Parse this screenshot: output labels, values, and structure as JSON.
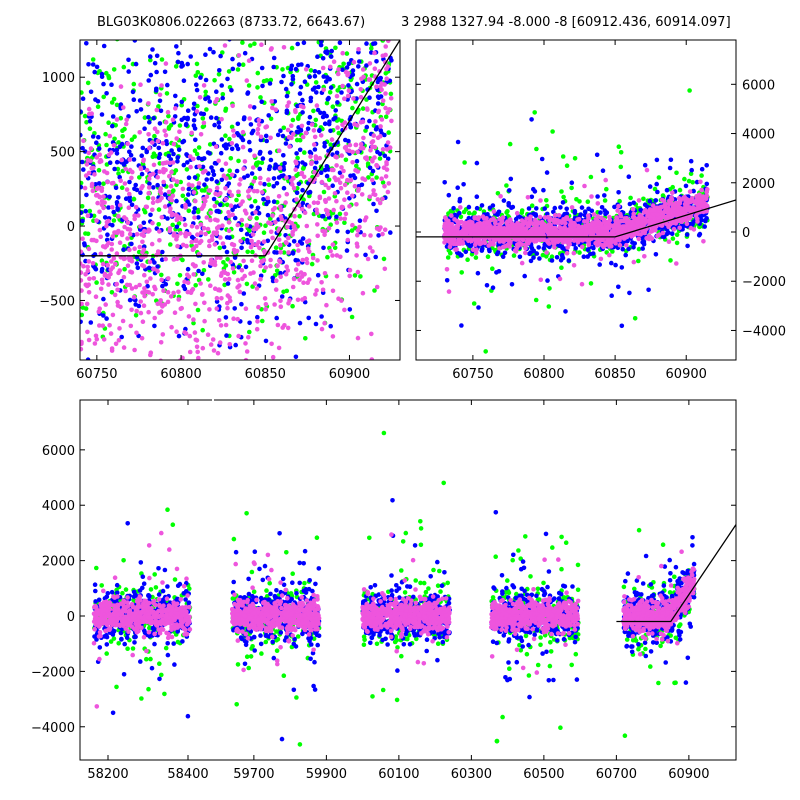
{
  "titles": {
    "left": "BLG03K0806.022663 (8733.72, 6643.67)",
    "right": "3 2988 1327.94 -8.000 -8 [60912.436, 60914.097]"
  },
  "colors": {
    "green": "#00ff00",
    "blue": "#0000ff",
    "magenta": "#ee55dd",
    "line": "#000000"
  },
  "chart_data": [
    {
      "type": "scatter",
      "panel": "top-left",
      "xlim": [
        60740,
        60930
      ],
      "ylim": [
        -900,
        1250
      ],
      "xticks": [
        60750,
        60800,
        60850,
        60900
      ],
      "yticks": [
        -500,
        0,
        500,
        1000
      ],
      "yaxis_side": "left",
      "series": [
        {
          "color": "green",
          "x_range": [
            60740,
            60925
          ],
          "y_range": [
            -900,
            1250
          ]
        },
        {
          "color": "blue",
          "x_range": [
            60740,
            60925
          ],
          "y_range": [
            -900,
            1250
          ]
        },
        {
          "color": "magenta",
          "x_range": [
            60740,
            60925
          ],
          "y_range": [
            -900,
            1250
          ]
        }
      ],
      "model_line": {
        "x": [
          60740,
          60850,
          60930
        ],
        "y": [
          -200,
          -200,
          1250
        ]
      }
    },
    {
      "type": "scatter",
      "panel": "top-right",
      "xlim": [
        60710,
        60935
      ],
      "ylim": [
        -5200,
        7800
      ],
      "xticks": [
        60750,
        60800,
        60850,
        60900
      ],
      "yticks": [
        -4000,
        -2000,
        0,
        2000,
        4000,
        6000
      ],
      "yaxis_side": "right",
      "series": [
        {
          "color": "green",
          "x_range": [
            60730,
            60915
          ],
          "y_range": [
            -4000,
            6200
          ]
        },
        {
          "color": "blue",
          "x_range": [
            60730,
            60915
          ],
          "y_range": [
            -3800,
            6700
          ]
        },
        {
          "color": "magenta",
          "x_range": [
            60730,
            60915
          ],
          "y_range": [
            -2800,
            6500
          ]
        }
      ],
      "model_line": {
        "x": [
          60710,
          60850,
          60935
        ],
        "y": [
          -200,
          -200,
          1300
        ]
      }
    },
    {
      "type": "scatter",
      "panel": "bottom",
      "ylim": [
        -5200,
        7800
      ],
      "yticks": [
        -4000,
        -2000,
        0,
        2000,
        4000,
        6000
      ],
      "xticks": [
        58200,
        58400,
        59700,
        59900,
        60100,
        60300,
        60500,
        60700,
        60900
      ],
      "seasons": [
        {
          "x_range": [
            58165,
            58405
          ]
        },
        {
          "x_range": [
            59640,
            59880
          ]
        },
        {
          "x_range": [
            60000,
            60240
          ]
        },
        {
          "x_range": [
            60355,
            60595
          ]
        },
        {
          "x_range": [
            60720,
            60915
          ]
        }
      ],
      "series": [
        {
          "color": "green"
        },
        {
          "color": "blue"
        },
        {
          "color": "magenta"
        }
      ],
      "model_line": {
        "x": [
          60700,
          60850,
          61030
        ],
        "y": [
          -200,
          -200,
          3300
        ]
      }
    }
  ]
}
